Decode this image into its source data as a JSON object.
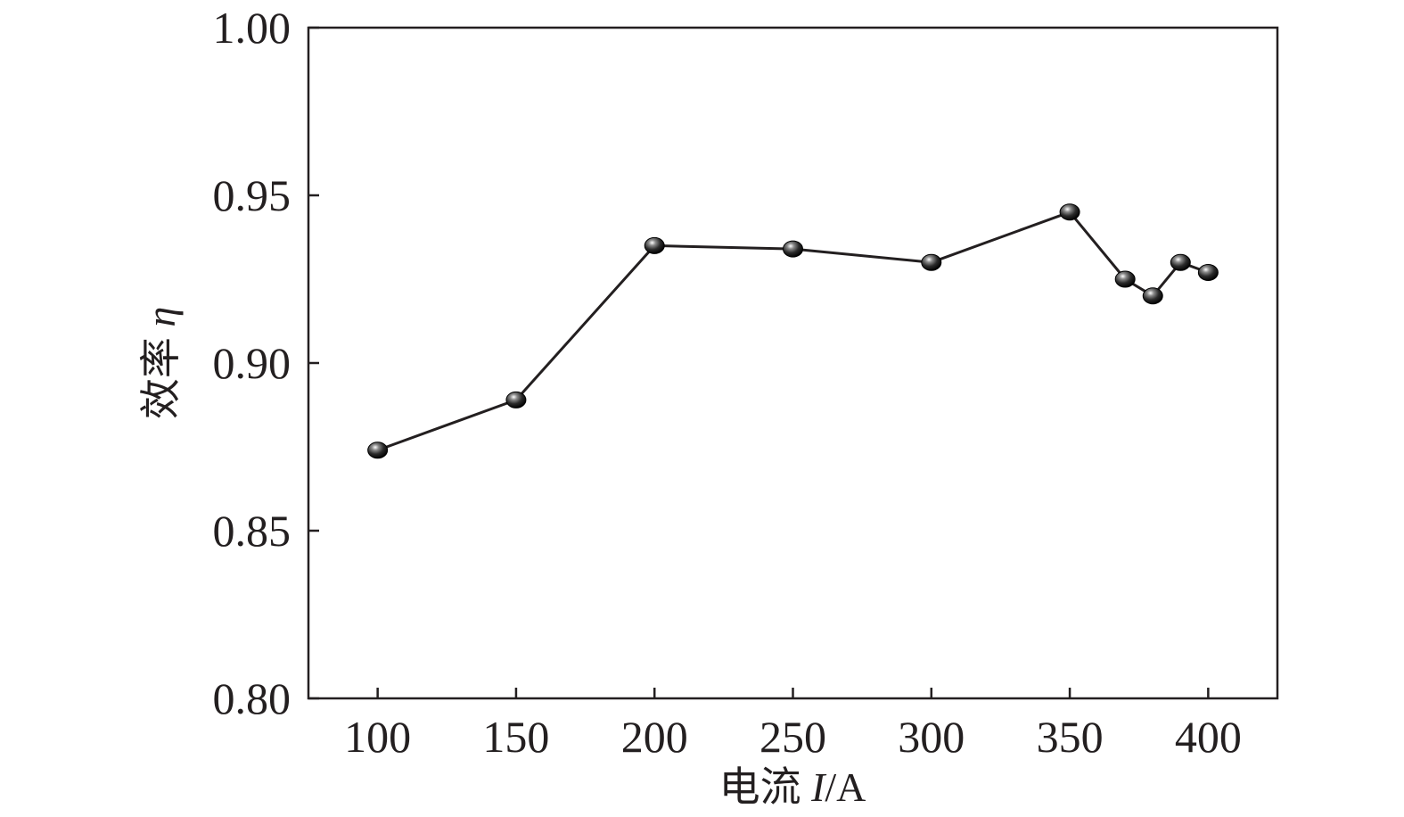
{
  "chart_data": {
    "type": "line",
    "xlabel": "电流 I/A",
    "xlabel_prefix": "电流 ",
    "xlabel_var": "I",
    "xlabel_unit": "/A",
    "ylabel": "效率 η",
    "ylabel_prefix": "效率 ",
    "ylabel_var": "η",
    "xlim": [
      75,
      425
    ],
    "ylim": [
      0.8,
      1.0
    ],
    "xticks": [
      "100",
      "150",
      "200",
      "250",
      "300",
      "350",
      "400"
    ],
    "yticks": [
      "0.80",
      "0.85",
      "0.90",
      "0.95",
      "1.00"
    ],
    "grid": false,
    "series": [
      {
        "x": [
          100,
          150,
          200,
          250,
          300,
          350,
          370,
          380,
          390,
          400
        ],
        "y": [
          0.874,
          0.889,
          0.935,
          0.934,
          0.93,
          0.945,
          0.925,
          0.92,
          0.93,
          0.927
        ]
      }
    ],
    "colors": {
      "line": "#231f20",
      "marker": "#1a1a1a",
      "marker_highlight": "#ffffff"
    }
  }
}
